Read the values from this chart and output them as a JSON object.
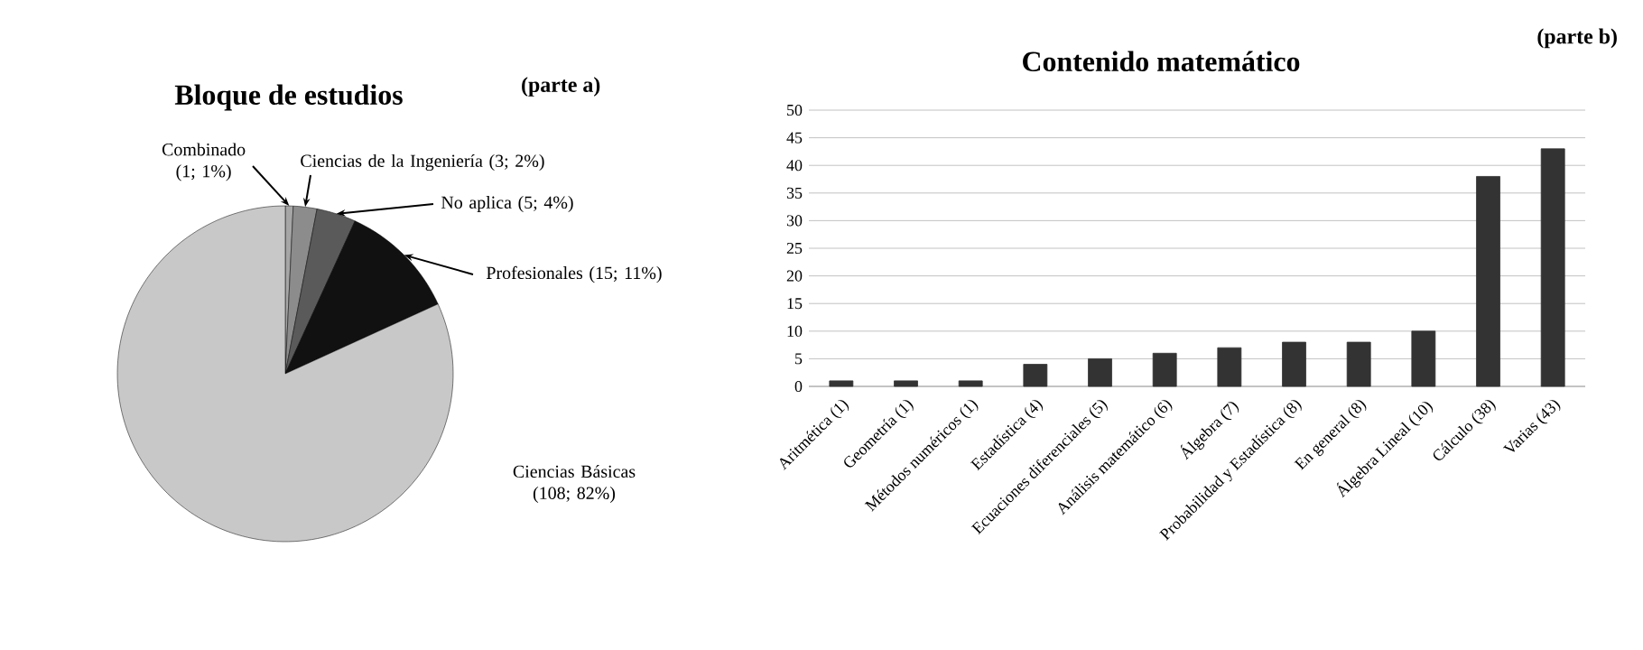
{
  "chart_data": [
    {
      "type": "pie",
      "title": "Bloque de estudios",
      "categories": [
        "Combinado (1; 1%)",
        "Ciencias de la Ingeniería (3; 2%)",
        "No aplica (5; 4%)",
        "Profesionales (15; 11%)",
        "Ciencias Básicas (108; 82%)"
      ],
      "values": [
        1,
        3,
        5,
        15,
        108
      ],
      "colors": [
        "#a6a6a6",
        "#8c8c8c",
        "#5a5a5a",
        "#111111",
        "#c8c8c8"
      ],
      "annotations": [
        "(parte a)"
      ]
    },
    {
      "type": "bar",
      "title": "Contenido matemático",
      "categories": [
        "Aritmética (1)",
        "Geometría (1)",
        "Métodos numéricos (1)",
        "Estadística (4)",
        "Ecuaciones diferenciales (5)",
        "Análisis matemático (6)",
        "Álgebra (7)",
        "Probabilidad y Estadística (8)",
        "En general (8)",
        "Álgebra Lineal (10)",
        "Cálculo (38)",
        "Varias (43)"
      ],
      "values": [
        1,
        1,
        1,
        4,
        5,
        6,
        7,
        8,
        8,
        10,
        38,
        43
      ],
      "color": "#333333",
      "ylim": [
        0,
        50
      ],
      "yticks": [
        0,
        5,
        10,
        15,
        20,
        25,
        30,
        35,
        40,
        45,
        50
      ],
      "grid": "y",
      "annotations": [
        "(parte b)"
      ]
    }
  ]
}
